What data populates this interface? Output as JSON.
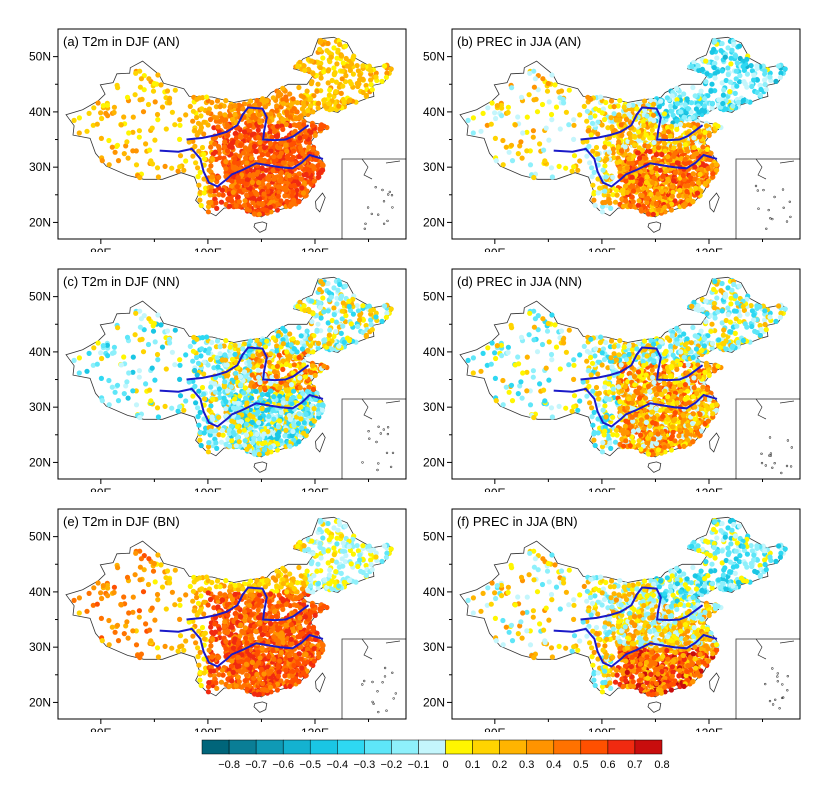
{
  "panels": [
    {
      "id": "a",
      "title": "(a) T2m in DJF (AN)",
      "field": "t2m_an"
    },
    {
      "id": "b",
      "title": "(b) PREC in JJA (AN)",
      "field": "prec_an"
    },
    {
      "id": "c",
      "title": "(c) T2m in DJF (NN)",
      "field": "t2m_nn"
    },
    {
      "id": "d",
      "title": "(d) PREC in JJA (NN)",
      "field": "prec_nn"
    },
    {
      "id": "e",
      "title": "(e) T2m in DJF (BN)",
      "field": "t2m_bn"
    },
    {
      "id": "f",
      "title": "(f) PREC in JJA (BN)",
      "field": "prec_bn"
    }
  ],
  "axes": {
    "x_ticks": [
      "80E",
      "100E",
      "120E"
    ],
    "y_ticks": [
      "50N",
      "40N",
      "30N",
      "20N"
    ]
  },
  "colorbar": {
    "labels": [
      "-0.8",
      "-0.7",
      "-0.6",
      "-0.5",
      "-0.4",
      "-0.3",
      "-0.2",
      "-0.1",
      "0",
      "0.1",
      "0.2",
      "0.3",
      "0.4",
      "0.5",
      "0.6",
      "0.7",
      "0.8"
    ],
    "colors": [
      "#00657a",
      "#0a7e96",
      "#0f9ab5",
      "#14b2d0",
      "#1ac6e4",
      "#2ed8f2",
      "#5ee6f8",
      "#8ef0fb",
      "#c4f6fc",
      "#fff600",
      "#ffd400",
      "#ffb400",
      "#ff9400",
      "#ff7200",
      "#ff5000",
      "#f02a10",
      "#c80d0d"
    ]
  }
}
